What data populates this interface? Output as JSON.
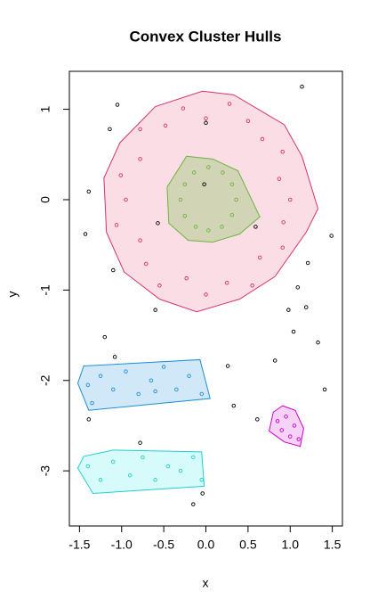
{
  "chart_data": {
    "type": "scatter",
    "title": "Convex Cluster Hulls",
    "xlabel": "x",
    "ylabel": "y",
    "xlim": [
      -1.62,
      1.62
    ],
    "ylim": [
      -3.61,
      1.42
    ],
    "xticks": [
      -1.5,
      {
        "value": -1,
        "label": "-1.0"
      },
      -0.5,
      {
        "value": 0,
        "label": "0.0"
      },
      0.5,
      {
        "value": 1,
        "label": "1.0"
      },
      1.5
    ],
    "yticks": [
      1,
      0,
      -1,
      -2,
      -3
    ],
    "series": [
      {
        "color": "#d6336c",
        "fill": "rgba(244,160,180,0.35)",
        "hull_x": [
          -0.04,
          0.33,
          0.93,
          1.14,
          1.33,
          1.19,
          0.82,
          0.4,
          -0.11,
          -0.55,
          -0.97,
          -1.18,
          -1.21,
          -1.02,
          -0.6
        ],
        "hull_y": [
          1.2,
          1.16,
          0.83,
          0.48,
          -0.1,
          -0.36,
          -0.85,
          -1.1,
          -1.24,
          -1.1,
          -0.8,
          -0.36,
          0.24,
          0.63,
          1.03
        ],
        "x": [
          1.0,
          0.87,
          0.91,
          0.67,
          0.5,
          0.28,
          0,
          -0.27,
          -0.48,
          -0.78,
          -0.78,
          -1.01,
          -0.95,
          -1.06,
          -0.78,
          -0.71,
          -0.55,
          -0.23,
          0,
          0.25,
          0.55,
          0.64,
          0.91,
          0.92
        ],
        "y": [
          0,
          0.23,
          0.53,
          0.67,
          0.87,
          1.06,
          0.9,
          1.01,
          0.82,
          0.78,
          0.45,
          0.27,
          0,
          -0.28,
          -0.45,
          -0.71,
          -0.95,
          -0.87,
          -1.05,
          -0.92,
          -0.95,
          -0.64,
          -0.53,
          -0.25
        ]
      },
      {
        "color": "#6db33f",
        "fill": "rgba(150,200,110,0.4)",
        "hull_x": [
          -0.23,
          0.08,
          0.38,
          0.64,
          0.4,
          0.08,
          -0.21,
          -0.44,
          -0.46
        ],
        "hull_y": [
          0.48,
          0.45,
          0.32,
          -0.19,
          -0.38,
          -0.47,
          -0.45,
          -0.26,
          0.14
        ],
        "x": [
          0.36,
          0.31,
          0.2,
          0.03,
          -0.14,
          -0.25,
          -0.3,
          -0.25,
          -0.12,
          0.03,
          0.19,
          0.31
        ],
        "y": [
          0,
          0.17,
          0.3,
          0.36,
          0.3,
          0.17,
          0,
          -0.18,
          -0.3,
          -0.34,
          -0.3,
          -0.17
        ]
      },
      {
        "color": "#1f8fd6",
        "fill": "rgba(120,190,235,0.35)",
        "hull_x": [
          -1.45,
          -0.07,
          0.05,
          -1.39,
          -1.52
        ],
        "hull_y": [
          -1.84,
          -1.77,
          -2.2,
          -2.33,
          -2.03
        ],
        "x": [
          -1.4,
          -1.25,
          -1.1,
          -0.95,
          -0.8,
          -0.65,
          -0.5,
          -0.35,
          -0.2,
          -0.05,
          -1.35,
          -0.6
        ],
        "y": [
          -2.05,
          -1.95,
          -2.1,
          -1.9,
          -2.15,
          -2.0,
          -1.85,
          -2.1,
          -1.95,
          -2.15,
          -2.25,
          -2.12
        ]
      },
      {
        "color": "#22cfcf",
        "fill": "rgba(140,240,240,0.35)",
        "hull_x": [
          -1.45,
          -1.1,
          -0.05,
          -0.02,
          -1.34,
          -1.52
        ],
        "hull_y": [
          -2.84,
          -2.77,
          -2.79,
          -3.17,
          -3.25,
          -2.97
        ],
        "x": [
          -1.4,
          -1.25,
          -1.1,
          -0.9,
          -0.75,
          -0.6,
          -0.45,
          -0.3,
          -0.15,
          -0.05
        ],
        "y": [
          -2.95,
          -3.1,
          -2.9,
          -3.05,
          -2.85,
          -3.1,
          -2.95,
          -3.0,
          -2.85,
          -3.1
        ]
      },
      {
        "color": "#cc00cc",
        "fill": "rgba(230,130,230,0.35)",
        "hull_x": [
          0.91,
          1.06,
          1.16,
          1.12,
          0.93,
          0.75,
          0.8
        ],
        "hull_y": [
          -2.28,
          -2.33,
          -2.53,
          -2.73,
          -2.68,
          -2.56,
          -2.35
        ],
        "x": [
          0.95,
          1.05,
          0.9,
          1.1,
          0.85,
          1.0
        ],
        "y": [
          -2.4,
          -2.5,
          -2.55,
          -2.65,
          -2.45,
          -2.62
        ]
      },
      {
        "color": "#000000",
        "x": [
          1.14,
          -1.05,
          -1.14,
          -1.39,
          -1.43,
          1.49,
          1.21,
          -1.1,
          -0.6,
          1.09,
          0.98,
          1.19,
          1.04,
          -1.2,
          1.33,
          -1.08,
          0.82,
          0.26,
          1.41,
          0.33,
          0.61,
          -1.39,
          -0.78,
          -0.04,
          -0.15,
          0,
          -0.02,
          -0.57,
          0.59
        ],
        "y": [
          1.25,
          1.05,
          0.78,
          0.09,
          -0.38,
          -0.4,
          -0.7,
          -0.78,
          -1.22,
          -0.97,
          -1.22,
          -1.19,
          -1.46,
          -1.52,
          -1.58,
          -1.74,
          -1.78,
          -1.84,
          -2.1,
          -2.28,
          -2.43,
          -2.43,
          -2.69,
          -3.25,
          -3.37,
          0.85,
          0.17,
          -0.26,
          -0.3
        ]
      }
    ]
  }
}
